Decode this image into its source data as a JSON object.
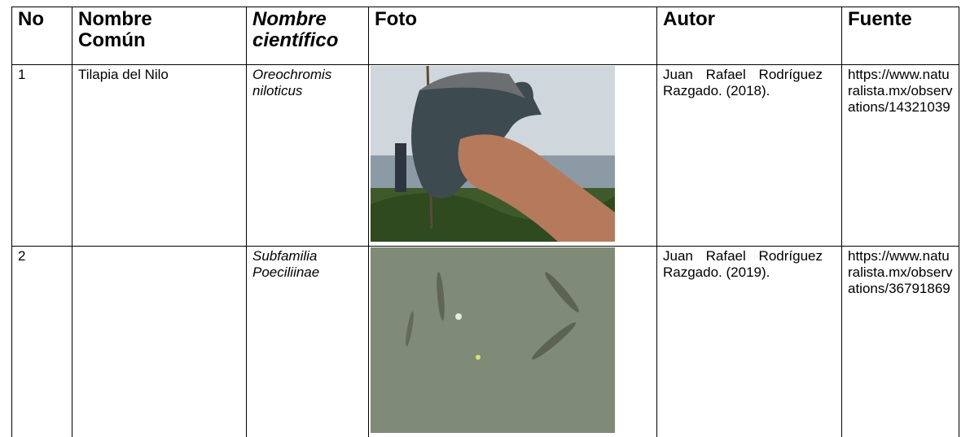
{
  "table": {
    "header": [
      "No",
      "Nombre Común",
      "Nombre científico",
      "Foto",
      "Autor",
      "Fuente"
    ],
    "rows": [
      {
        "no": "1",
        "common": "Tilapia del Nilo",
        "scientific": "Oreochromis niloticus",
        "author": "Juan Rafael Rodríguez Razgado. (2018).",
        "source": "https://www.naturalista.mx/observations/14321039"
      },
      {
        "no": "2",
        "scientific": "Subfamilia Poeciliinae",
        "author": "Juan Rafael Rodríguez Razgado. (2019).",
        "source": "https://www.naturalista.mx/observations/36791869"
      }
    ]
  }
}
